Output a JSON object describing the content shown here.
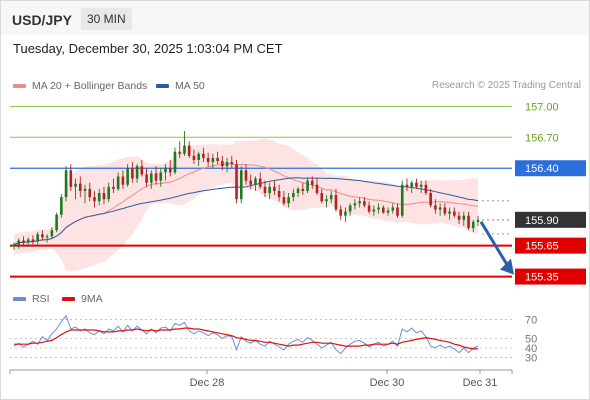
{
  "header": {
    "symbol": "USD/JPY",
    "timeframe": "30 MIN"
  },
  "datetime": "Tuesday, December 30, 2025 1:03:04 PM CET",
  "legend": {
    "ma20": {
      "label": "MA 20 + Bollinger Bands",
      "color": "#f08a8a"
    },
    "ma50": {
      "label": "MA 50",
      "color": "#2f5aa0"
    }
  },
  "credit": "Research © 2025 Trading Central",
  "rsi_legend": {
    "rsi": {
      "label": "RSI",
      "color": "#6a8fd8"
    },
    "ma": {
      "label": "9MA",
      "color": "#dd1111"
    }
  },
  "colors": {
    "up": "#1f7a1f",
    "down": "#b22222",
    "band": "#fde0e0",
    "target": "#f2f2f2",
    "price_tag": "#333333",
    "arrow": "#2b5fa8"
  },
  "chart_data": [
    {
      "type": "line",
      "title": "USD/JPY",
      "ylim": [
        155.22,
        157.1
      ],
      "x_ticks": [
        "Dec 28",
        "Dec 30",
        "Dec 31"
      ],
      "series": [
        {
          "name": "MA 20 + Bollinger Bands"
        },
        {
          "name": "MA 50"
        }
      ],
      "price_levels": [
        {
          "label": "157.00",
          "value": 157.0,
          "kind": "resistance",
          "color": "#8cc63f",
          "text_color": "#6aa31f"
        },
        {
          "label": "156.70",
          "value": 156.7,
          "kind": "resistance",
          "color": "#8cc63f",
          "text_color": "#6aa31f"
        },
        {
          "label": "156.40",
          "value": 156.4,
          "kind": "pivot",
          "color": "#2b6fdc",
          "text_color": "#ffffff"
        },
        {
          "label": "155.90",
          "value": 155.9,
          "kind": "last",
          "color": "#333333",
          "text_color": "#ffffff"
        },
        {
          "label": "155.65",
          "value": 155.65,
          "kind": "support",
          "color": "#e00000",
          "text_color": "#ffffff"
        },
        {
          "label": "155.35",
          "value": 155.35,
          "kind": "support",
          "color": "#e00000",
          "text_color": "#ffffff"
        }
      ],
      "projection": {
        "from": 155.9,
        "to": 155.35,
        "direction": "down"
      },
      "candles": [
        [
          155.64,
          155.68,
          155.61,
          155.66
        ],
        [
          155.66,
          155.72,
          155.62,
          155.7
        ],
        [
          155.7,
          155.74,
          155.65,
          155.68
        ],
        [
          155.68,
          155.73,
          155.64,
          155.71
        ],
        [
          155.71,
          155.75,
          155.66,
          155.69
        ],
        [
          155.69,
          155.78,
          155.66,
          155.76
        ],
        [
          155.76,
          155.8,
          155.7,
          155.73
        ],
        [
          155.73,
          155.76,
          155.68,
          155.74
        ],
        [
          155.74,
          155.83,
          155.72,
          155.8
        ],
        [
          155.8,
          155.97,
          155.78,
          155.95
        ],
        [
          155.95,
          156.15,
          155.92,
          156.12
        ],
        [
          156.12,
          156.42,
          156.08,
          156.38
        ],
        [
          156.38,
          156.44,
          156.18,
          156.22
        ],
        [
          156.22,
          156.3,
          156.1,
          156.25
        ],
        [
          156.25,
          156.32,
          156.12,
          156.18
        ],
        [
          156.18,
          156.24,
          156.06,
          156.2
        ],
        [
          156.2,
          156.26,
          156.08,
          156.12
        ],
        [
          156.12,
          156.18,
          156.02,
          156.08
        ],
        [
          156.08,
          156.2,
          156.04,
          156.16
        ],
        [
          156.16,
          156.22,
          156.05,
          156.1
        ],
        [
          156.1,
          156.26,
          156.07,
          156.22
        ],
        [
          156.22,
          156.3,
          156.16,
          156.2
        ],
        [
          156.2,
          156.36,
          156.18,
          156.32
        ],
        [
          156.32,
          156.38,
          156.2,
          156.24
        ],
        [
          156.24,
          156.44,
          156.22,
          156.4
        ],
        [
          156.4,
          156.46,
          156.26,
          156.3
        ],
        [
          156.3,
          156.44,
          156.26,
          156.42
        ],
        [
          156.42,
          156.48,
          156.32,
          156.34
        ],
        [
          156.34,
          156.4,
          156.22,
          156.26
        ],
        [
          156.26,
          156.38,
          156.2,
          156.35
        ],
        [
          156.35,
          156.42,
          156.24,
          156.28
        ],
        [
          156.28,
          156.4,
          156.22,
          156.36
        ],
        [
          156.36,
          156.44,
          156.28,
          156.4
        ],
        [
          156.4,
          156.48,
          156.32,
          156.36
        ],
        [
          156.36,
          156.6,
          156.34,
          156.56
        ],
        [
          156.56,
          156.66,
          156.5,
          156.54
        ],
        [
          156.54,
          156.76,
          156.52,
          156.62
        ],
        [
          156.62,
          156.66,
          156.5,
          156.52
        ],
        [
          156.52,
          156.58,
          156.44,
          156.48
        ],
        [
          156.48,
          156.56,
          156.42,
          156.54
        ],
        [
          156.54,
          156.6,
          156.46,
          156.5
        ],
        [
          156.5,
          156.55,
          156.42,
          156.46
        ],
        [
          156.46,
          156.54,
          156.4,
          156.5
        ],
        [
          156.5,
          156.56,
          156.44,
          156.47
        ],
        [
          156.47,
          156.52,
          156.38,
          156.42
        ],
        [
          156.42,
          156.5,
          156.36,
          156.46
        ],
        [
          156.46,
          156.52,
          156.4,
          156.44
        ],
        [
          156.44,
          156.48,
          156.06,
          156.1
        ],
        [
          156.1,
          156.42,
          156.06,
          156.38
        ],
        [
          156.38,
          156.44,
          156.24,
          156.28
        ],
        [
          156.28,
          156.34,
          156.2,
          156.24
        ],
        [
          156.24,
          156.32,
          156.18,
          156.3
        ],
        [
          156.3,
          156.36,
          156.2,
          156.22
        ],
        [
          156.22,
          156.28,
          156.12,
          156.16
        ],
        [
          156.16,
          156.26,
          156.1,
          156.22
        ],
        [
          156.22,
          156.28,
          156.14,
          156.18
        ],
        [
          156.18,
          156.24,
          156.08,
          156.12
        ],
        [
          156.12,
          156.18,
          156.04,
          156.06
        ],
        [
          156.06,
          156.16,
          156.02,
          156.12
        ],
        [
          156.12,
          156.2,
          156.08,
          156.16
        ],
        [
          156.16,
          156.22,
          156.12,
          156.2
        ],
        [
          156.2,
          156.26,
          156.14,
          156.18
        ],
        [
          156.18,
          156.3,
          156.16,
          156.28
        ],
        [
          156.28,
          156.32,
          156.2,
          156.24
        ],
        [
          156.24,
          156.3,
          156.14,
          156.16
        ],
        [
          156.16,
          156.2,
          156.06,
          156.08
        ],
        [
          156.08,
          156.14,
          156.02,
          156.1
        ],
        [
          156.1,
          156.18,
          156.06,
          156.14
        ],
        [
          156.14,
          156.2,
          155.98,
          156.0
        ],
        [
          156.0,
          156.04,
          155.9,
          155.94
        ],
        [
          155.94,
          156.02,
          155.88,
          155.98
        ],
        [
          155.98,
          156.06,
          155.94,
          156.04
        ],
        [
          156.04,
          156.1,
          156.0,
          156.06
        ],
        [
          156.06,
          156.12,
          156.02,
          156.08
        ],
        [
          156.08,
          156.12,
          156.02,
          156.04
        ],
        [
          156.04,
          156.08,
          155.96,
          155.98
        ],
        [
          155.98,
          156.04,
          155.94,
          156.0
        ],
        [
          156.0,
          156.06,
          155.96,
          156.02
        ],
        [
          156.02,
          156.04,
          155.96,
          155.97
        ],
        [
          155.97,
          156.02,
          155.94,
          155.99
        ],
        [
          155.99,
          156.06,
          155.96,
          156.02
        ],
        [
          156.02,
          156.06,
          155.92,
          155.94
        ],
        [
          155.94,
          156.28,
          155.92,
          156.24
        ],
        [
          156.24,
          156.3,
          156.18,
          156.22
        ],
        [
          156.22,
          156.28,
          156.16,
          156.26
        ],
        [
          156.26,
          156.3,
          156.2,
          156.22
        ],
        [
          156.22,
          156.28,
          156.16,
          156.24
        ],
        [
          156.24,
          156.28,
          156.14,
          156.16
        ],
        [
          156.16,
          156.2,
          156.02,
          156.04
        ],
        [
          156.04,
          156.1,
          155.96,
          156.0
        ],
        [
          156.0,
          156.06,
          155.94,
          156.02
        ],
        [
          156.02,
          156.06,
          155.94,
          155.96
        ],
        [
          155.96,
          156.02,
          155.9,
          155.98
        ],
        [
          155.98,
          156.02,
          155.92,
          155.94
        ],
        [
          155.94,
          155.98,
          155.86,
          155.9
        ],
        [
          155.9,
          155.98,
          155.84,
          155.94
        ],
        [
          155.94,
          155.98,
          155.8,
          155.82
        ],
        [
          155.82,
          155.9,
          155.78,
          155.88
        ],
        [
          155.88,
          155.94,
          155.84,
          155.9
        ]
      ]
    },
    {
      "type": "line",
      "title": "RSI",
      "ylim": [
        22,
        78
      ],
      "y_ticks": [
        70,
        50,
        40,
        30
      ],
      "series": [
        {
          "name": "RSI",
          "values": [
            42,
            45,
            41,
            44,
            47,
            44,
            52,
            48,
            55,
            60,
            68,
            74,
            60,
            62,
            58,
            60,
            56,
            54,
            58,
            55,
            60,
            58,
            63,
            57,
            64,
            58,
            63,
            59,
            55,
            60,
            56,
            61,
            62,
            58,
            66,
            64,
            67,
            58,
            55,
            58,
            56,
            53,
            56,
            54,
            50,
            53,
            52,
            38,
            52,
            47,
            45,
            48,
            44,
            42,
            47,
            44,
            41,
            38,
            44,
            47,
            49,
            46,
            51,
            48,
            44,
            40,
            43,
            46,
            38,
            34,
            40,
            44,
            47,
            48,
            45,
            41,
            44,
            46,
            42,
            44,
            47,
            42,
            60,
            57,
            61,
            56,
            58,
            52,
            42,
            40,
            43,
            40,
            42,
            39,
            35,
            40,
            35,
            40,
            42
          ]
        },
        {
          "name": "9MA",
          "values": [
            44,
            44,
            44,
            44,
            45,
            45,
            46,
            47,
            48,
            51,
            54,
            57,
            59,
            59,
            59,
            59,
            59,
            59,
            58,
            57,
            57,
            57,
            58,
            58,
            59,
            59,
            60,
            59,
            58,
            59,
            58,
            59,
            59,
            59,
            60,
            60,
            61,
            61,
            60,
            60,
            59,
            58,
            57,
            56,
            55,
            54,
            53,
            51,
            50,
            49,
            48,
            48,
            47,
            46,
            46,
            45,
            44,
            43,
            42,
            43,
            43,
            44,
            45,
            46,
            46,
            45,
            45,
            45,
            44,
            43,
            42,
            42,
            42,
            42,
            43,
            43,
            44,
            44,
            44,
            44,
            45,
            44,
            46,
            47,
            48,
            49,
            50,
            51,
            50,
            49,
            48,
            47,
            46,
            44,
            43,
            41,
            40,
            39,
            39
          ]
        }
      ]
    }
  ]
}
